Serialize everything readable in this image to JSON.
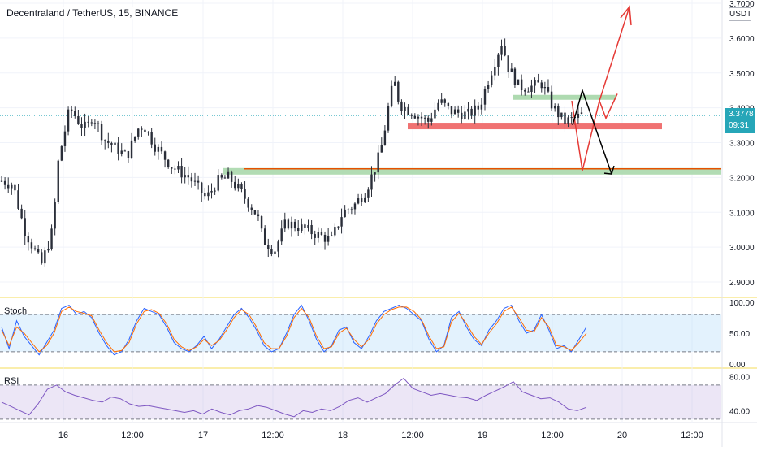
{
  "header": {
    "symbol_title": "Decentraland / TetherUS, 15, BINANCE",
    "currency": "USDT"
  },
  "last_price": {
    "value": "3.3778",
    "countdown": "09:31",
    "color": "#26a6b8"
  },
  "chart_data": [
    {
      "type": "candlestick",
      "title": "Decentraland / TetherUS, 15, BINANCE",
      "xlabel": "",
      "ylabel": "",
      "y_ticks": [
        "3.7000",
        "3.6000",
        "3.5000",
        "3.4000",
        "3.3000",
        "3.2000",
        "3.1000",
        "3.0000",
        "2.9000"
      ],
      "ylim": [
        2.88,
        3.74
      ],
      "x_ticks": [
        "16",
        "12:00",
        "17",
        "12:00",
        "18",
        "12:00",
        "19",
        "12:00",
        "20",
        "12:00"
      ],
      "grid": true,
      "approx_close_path": [
        [
          0,
          3.19
        ],
        [
          2,
          3.18
        ],
        [
          4,
          3.05
        ],
        [
          7,
          2.95
        ],
        [
          9,
          3.05
        ],
        [
          10,
          3.25
        ],
        [
          12,
          3.4
        ],
        [
          14,
          3.35
        ],
        [
          15,
          3.34
        ],
        [
          16,
          3.38
        ],
        [
          18,
          3.31
        ],
        [
          22,
          3.26
        ],
        [
          24,
          3.34
        ],
        [
          25,
          3.35
        ],
        [
          27,
          3.29
        ],
        [
          30,
          3.23
        ],
        [
          33,
          3.2
        ],
        [
          36,
          3.14
        ],
        [
          38,
          3.19
        ],
        [
          40,
          3.2
        ],
        [
          42,
          3.16
        ],
        [
          45,
          3.09
        ],
        [
          46,
          3.02
        ],
        [
          48,
          2.99
        ],
        [
          50,
          3.07
        ],
        [
          52,
          3.06
        ],
        [
          55,
          3.04
        ],
        [
          58,
          3.02
        ],
        [
          60,
          3.1
        ],
        [
          62,
          3.12
        ],
        [
          64,
          3.16
        ],
        [
          66,
          3.24
        ],
        [
          67,
          3.3
        ],
        [
          68,
          3.4
        ],
        [
          69,
          3.48
        ],
        [
          70,
          3.41
        ],
        [
          72,
          3.39
        ],
        [
          75,
          3.36
        ],
        [
          77,
          3.42
        ],
        [
          79,
          3.39
        ],
        [
          82,
          3.38
        ],
        [
          84,
          3.4
        ],
        [
          86,
          3.5
        ],
        [
          88,
          3.59
        ],
        [
          89,
          3.52
        ],
        [
          91,
          3.46
        ],
        [
          93,
          3.46
        ],
        [
          95,
          3.47
        ],
        [
          97,
          3.4
        ],
        [
          99,
          3.36
        ],
        [
          101,
          3.37
        ],
        [
          102,
          3.38
        ]
      ],
      "annotations": {
        "support_line_price": 3.22,
        "resistance_zone_price": 3.35,
        "upper_zone_price": 3.43,
        "red_arrow_path": [
          3.42,
          3.22,
          3.42,
          3.69
        ],
        "black_arrow_path": [
          3.35,
          3.45,
          3.21
        ]
      }
    },
    {
      "type": "line",
      "title": "Stoch",
      "y_ticks": [
        "100.00",
        "50.00",
        "0.00"
      ],
      "ylim": [
        -5,
        105
      ],
      "band": [
        20,
        80
      ],
      "series": [
        {
          "color": "#2962ff",
          "approx_values": [
            60,
            25,
            70,
            45,
            30,
            15,
            35,
            55,
            90,
            95,
            80,
            85,
            75,
            50,
            30,
            15,
            20,
            40,
            70,
            90,
            85,
            80,
            60,
            35,
            25,
            20,
            30,
            45,
            25,
            40,
            60,
            80,
            90,
            75,
            55,
            30,
            20,
            25,
            50,
            80,
            95,
            70,
            40,
            20,
            30,
            55,
            60,
            35,
            25,
            45,
            70,
            85,
            90,
            95,
            90,
            80,
            70,
            40,
            20,
            30,
            75,
            85,
            60,
            40,
            30,
            55,
            70,
            90,
            95,
            70,
            50,
            55,
            80,
            55,
            25,
            30,
            20,
            40,
            60
          ]
        },
        {
          "color": "#ff6d00",
          "approx_values": [
            55,
            30,
            60,
            50,
            35,
            20,
            30,
            50,
            85,
            92,
            85,
            82,
            78,
            55,
            35,
            20,
            22,
            35,
            65,
            85,
            88,
            82,
            65,
            40,
            28,
            22,
            28,
            40,
            30,
            38,
            55,
            75,
            88,
            80,
            60,
            35,
            25,
            25,
            45,
            75,
            90,
            75,
            45,
            25,
            28,
            50,
            58,
            40,
            28,
            40,
            65,
            80,
            88,
            92,
            92,
            85,
            72,
            45,
            25,
            28,
            68,
            82,
            65,
            45,
            32,
            50,
            65,
            85,
            92,
            75,
            55,
            52,
            75,
            60,
            30,
            28,
            22,
            35,
            50
          ]
        }
      ]
    },
    {
      "type": "line",
      "title": "RSI",
      "y_ticks": [
        "80.00",
        "40.00"
      ],
      "ylim": [
        28,
        88
      ],
      "band": [
        30,
        70
      ],
      "series": [
        {
          "color": "#7e57c2",
          "approx_values": [
            50,
            45,
            40,
            35,
            48,
            65,
            70,
            62,
            58,
            55,
            52,
            50,
            56,
            54,
            48,
            45,
            46,
            44,
            42,
            40,
            38,
            40,
            36,
            42,
            38,
            35,
            40,
            42,
            46,
            44,
            40,
            36,
            33,
            40,
            38,
            42,
            40,
            45,
            52,
            55,
            50,
            55,
            60,
            70,
            78,
            66,
            62,
            58,
            60,
            58,
            56,
            55,
            52,
            58,
            63,
            68,
            74,
            62,
            58,
            54,
            55,
            50,
            42,
            40,
            44
          ]
        }
      ]
    }
  ]
}
